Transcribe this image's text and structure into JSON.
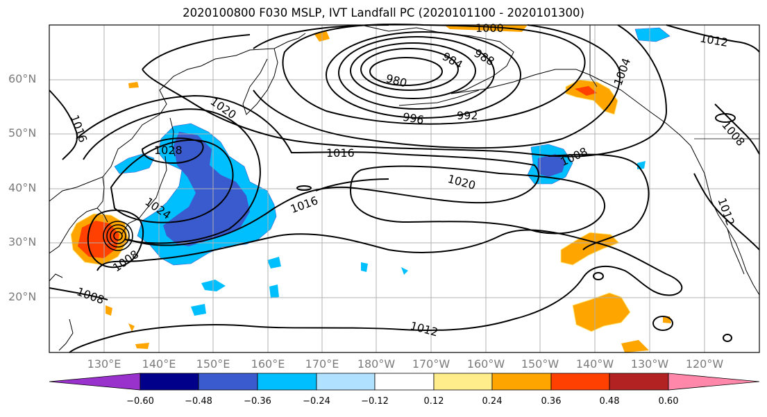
{
  "title": "2020100800 F030 MSLP, IVT Landfall PC (2020101100 - 2020101300)",
  "lat_labels": [
    "60°N",
    "50°N",
    "40°N",
    "30°N",
    "20°N"
  ],
  "lon_labels": [
    "130°E",
    "140°E",
    "150°E",
    "160°E",
    "170°E",
    "180°W",
    "170°W",
    "160°W",
    "150°W",
    "140°W",
    "130°W",
    "120°W"
  ],
  "contour_labels": {
    "c1016_west": "1016",
    "c1028": "1028",
    "c1020_north": "1020",
    "c1016_mid": "1016",
    "c1016_south": "1016",
    "c1024": "1024",
    "c1008_typhoon": "1008",
    "c1008_sw": "1008",
    "c980": "980",
    "c984": "984",
    "c988": "988",
    "c996": "996",
    "c992": "992",
    "c1000": "1000",
    "c1004": "1004",
    "c1008_east": "1008",
    "c1020_east": "1020",
    "c1012_south": "1012",
    "c1012_ne": "1012",
    "c1008_coast": "1008",
    "c1012_coast": "1012"
  },
  "colorbar": {
    "ticks": [
      "−0.60",
      "−0.48",
      "−0.36",
      "−0.24",
      "−0.12",
      "0.12",
      "0.24",
      "0.36",
      "0.48",
      "0.60"
    ],
    "colors": [
      "#9932cc",
      "#00008b",
      "#3a5bcd",
      "#00bfff",
      "#b0e2ff",
      "#ffffff",
      "#ffec8b",
      "#ffa500",
      "#ff4000",
      "#b22222",
      "#ff88aa"
    ]
  },
  "colors": {
    "land_line": "#000000",
    "grid": "#b0b0b0",
    "contour": "#000000"
  }
}
